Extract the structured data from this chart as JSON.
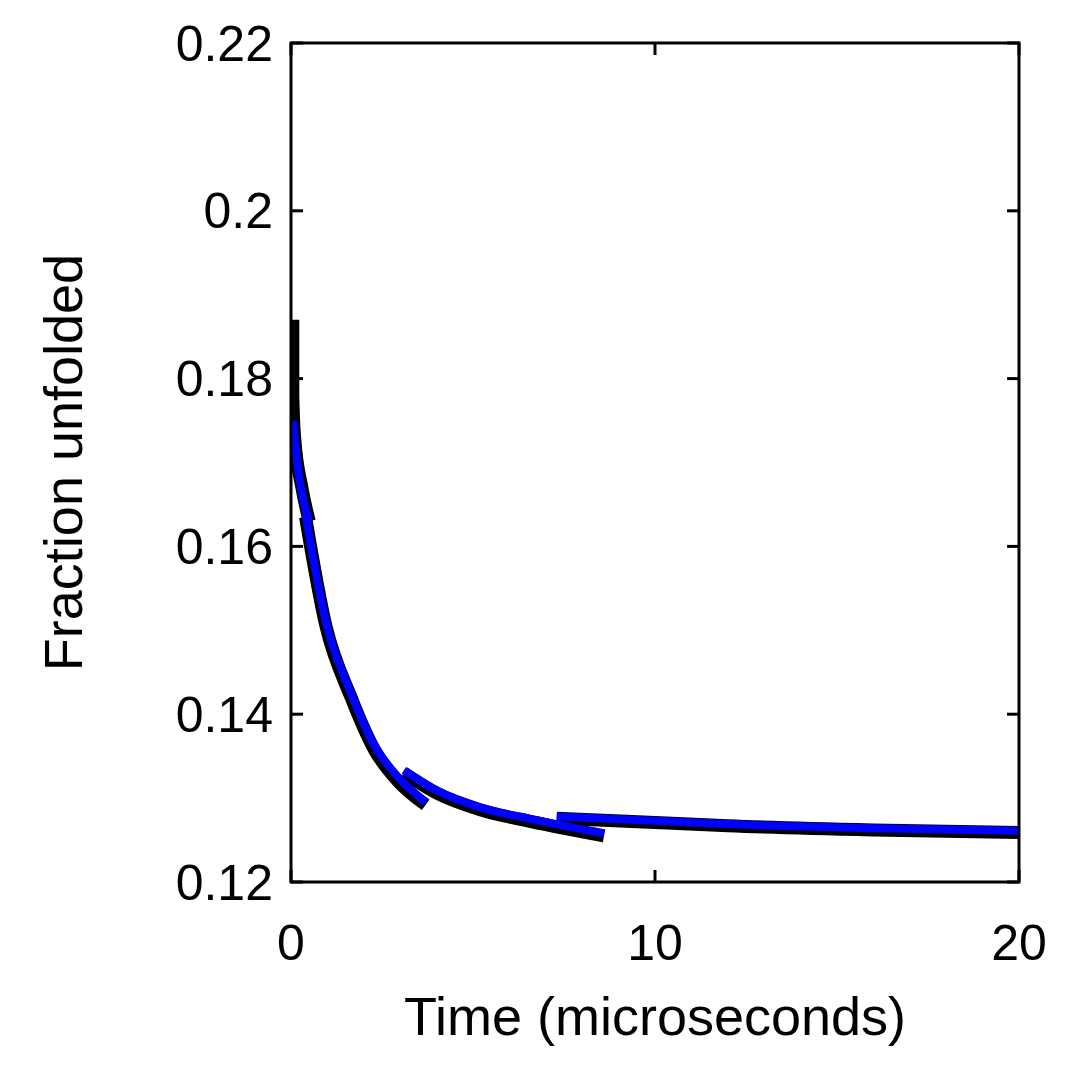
{
  "chart_data": {
    "type": "line",
    "xlabel": "Time (microseconds)",
    "ylabel": "Fraction unfolded",
    "xlim": [
      0,
      20
    ],
    "ylim": [
      0.12,
      0.22
    ],
    "xticks": [
      0,
      10,
      20
    ],
    "yticks": [
      0.12,
      0.14,
      0.16,
      0.18,
      0.2,
      0.22
    ],
    "grid": false,
    "marker": "none",
    "line_style": "solid",
    "series": [
      {
        "color": "#000000",
        "x": [
          0.05,
          0.05,
          0.1,
          0.3,
          0.5
        ],
        "values": [
          0.187,
          0.178,
          0.173,
          0.167,
          0.163
        ]
      },
      {
        "color": "#000000",
        "x": [
          0.4,
          0.96,
          1.65,
          2.3,
          2.9,
          3.7
        ],
        "values": [
          0.1635,
          0.1505,
          0.142,
          0.1357,
          0.1322,
          0.1292
        ]
      },
      {
        "color": "#000000",
        "x": [
          3.1,
          4,
          5.2,
          6.6,
          8.6
        ],
        "values": [
          0.133,
          0.1306,
          0.1286,
          0.1272,
          0.1255
        ]
      },
      {
        "color": "#000000",
        "x": [
          7.3,
          10,
          12,
          16,
          20
        ],
        "values": [
          0.1276,
          0.1271,
          0.1267,
          0.1262,
          0.1259
        ]
      },
      {
        "color": "#0000ff",
        "x": [
          0.05,
          0.2,
          0.5
        ],
        "values": [
          0.175,
          0.169,
          0.163
        ]
      },
      {
        "color": "#0000ff",
        "x": [
          0.4,
          0.96,
          1.65,
          2.3,
          2.9,
          3.7
        ],
        "values": [
          0.1638,
          0.151,
          0.1425,
          0.1362,
          0.1327,
          0.1295
        ]
      },
      {
        "color": "#0000ff",
        "x": [
          3.1,
          4,
          5.2,
          6.6,
          8.6
        ],
        "values": [
          0.1333,
          0.1309,
          0.1289,
          0.1275,
          0.1258
        ]
      },
      {
        "color": "#0000ff",
        "x": [
          7.3,
          10,
          12,
          16,
          20
        ],
        "values": [
          0.1278,
          0.1273,
          0.1269,
          0.1264,
          0.1261
        ]
      }
    ]
  }
}
